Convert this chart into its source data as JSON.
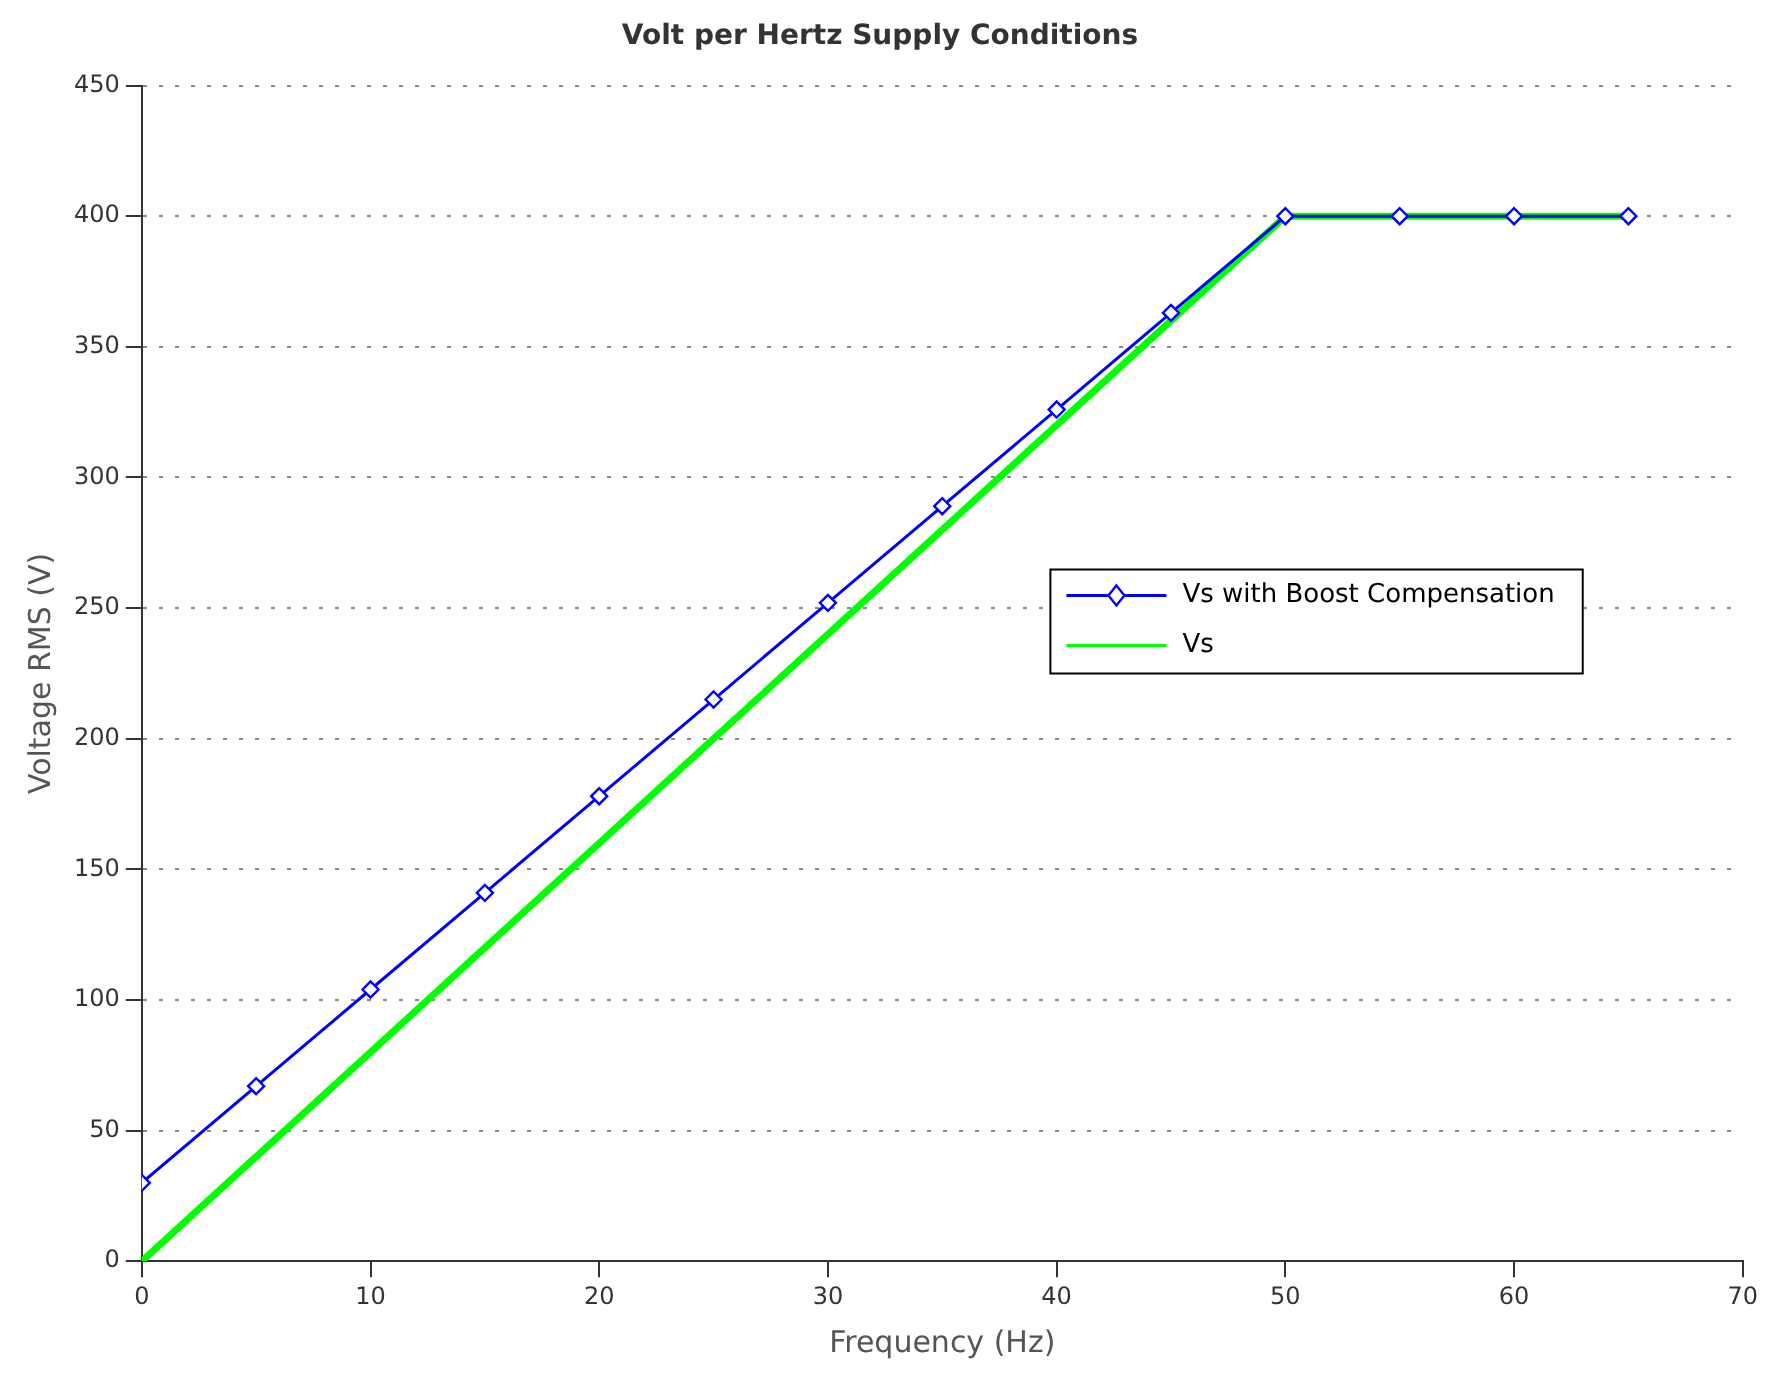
{
  "chart_data": {
    "type": "line",
    "title": "Volt per Hertz Supply Conditions",
    "xlabel": "Frequency (Hz)",
    "ylabel": "Voltage RMS (V)",
    "series": [
      {
        "name": "Vs with Boost Compensation",
        "color": "#0000ff",
        "marker": "diamond",
        "x": [
          0,
          5,
          10,
          15,
          20,
          25,
          30,
          35,
          40,
          45,
          50,
          55,
          60,
          65
        ],
        "values": [
          30,
          67,
          104,
          141,
          178,
          215,
          252,
          289,
          326,
          363,
          400,
          400,
          400,
          400
        ]
      },
      {
        "name": "Vs",
        "color": "#00ff00",
        "marker": "none",
        "x": [
          0,
          50,
          65
        ],
        "values": [
          0,
          400,
          400
        ]
      }
    ],
    "xlim": [
      0,
      70
    ],
    "xticks": [
      0,
      10,
      20,
      30,
      40,
      50,
      60,
      70
    ],
    "ylim": [
      0,
      450
    ],
    "yticks": [
      0,
      50,
      100,
      150,
      200,
      250,
      300,
      350,
      400,
      450
    ],
    "grid": "y",
    "legend": "right",
    "line_style": "solid"
  }
}
